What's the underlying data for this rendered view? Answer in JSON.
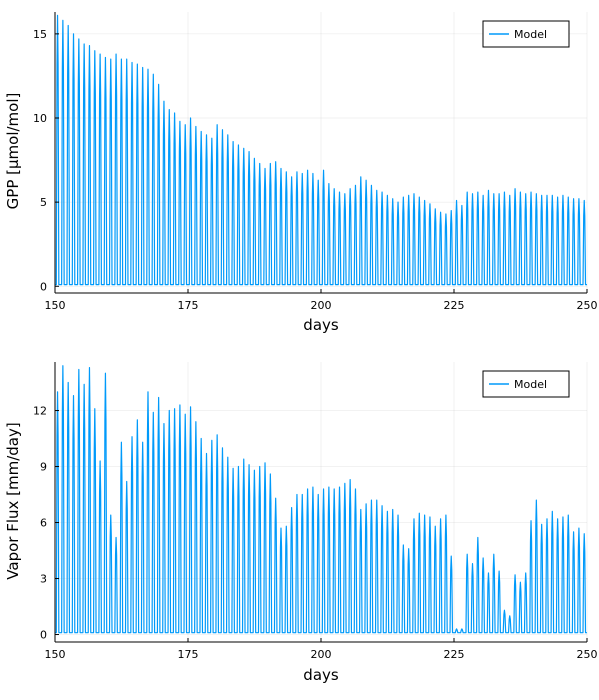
{
  "chart_data": [
    {
      "type": "line",
      "title": "",
      "xlabel": "days",
      "ylabel": "GPP [μmol/mol]",
      "xlim": [
        150,
        250
      ],
      "ylim": [
        -0.4,
        16.3
      ],
      "xticks": [
        150,
        175,
        200,
        225,
        250
      ],
      "yticks": [
        0,
        5,
        10,
        15
      ],
      "grid": true,
      "legend_placement": "top-right",
      "series": [
        {
          "name": "Model",
          "color": "#009AFA",
          "sampling": "sub-daily (diel cycle, values near 0 at night)",
          "daily_peak": {
            "days": [
              150,
              151,
              152,
              153,
              154,
              155,
              156,
              157,
              158,
              159,
              160,
              161,
              162,
              163,
              164,
              165,
              166,
              167,
              168,
              169,
              170,
              171,
              172,
              173,
              174,
              175,
              176,
              177,
              178,
              179,
              180,
              181,
              182,
              183,
              184,
              185,
              186,
              187,
              188,
              189,
              190,
              191,
              192,
              193,
              194,
              195,
              196,
              197,
              198,
              199,
              200,
              201,
              202,
              203,
              204,
              205,
              206,
              207,
              208,
              209,
              210,
              211,
              212,
              213,
              214,
              215,
              216,
              217,
              218,
              219,
              220,
              221,
              222,
              223,
              224,
              225,
              226,
              227,
              228,
              229,
              230,
              231,
              232,
              233,
              234,
              235,
              236,
              237,
              238,
              239,
              240,
              241,
              242,
              243,
              244,
              245,
              246,
              247,
              248,
              249
            ],
            "values": [
              16.1,
              15.8,
              15.5,
              15.0,
              14.7,
              14.4,
              14.3,
              14.0,
              13.8,
              13.6,
              13.5,
              13.8,
              13.5,
              13.5,
              13.3,
              13.2,
              13.0,
              12.9,
              12.6,
              12.0,
              11.0,
              10.5,
              10.3,
              9.8,
              9.6,
              10.0,
              9.5,
              9.2,
              9.0,
              8.8,
              9.6,
              9.3,
              9.0,
              8.6,
              8.4,
              8.2,
              8.0,
              7.6,
              7.3,
              7.0,
              7.3,
              7.4,
              7.0,
              6.8,
              6.5,
              6.8,
              6.7,
              6.9,
              6.7,
              6.3,
              6.9,
              6.1,
              5.8,
              5.6,
              5.5,
              5.8,
              6.0,
              6.5,
              6.3,
              6.0,
              5.7,
              5.6,
              5.4,
              5.2,
              5.0,
              5.3,
              5.4,
              5.5,
              5.3,
              5.1,
              4.9,
              4.6,
              4.4,
              4.3,
              4.5,
              5.1,
              4.8,
              5.6,
              5.5,
              5.6,
              5.4,
              5.7,
              5.5,
              5.5,
              5.6,
              5.4,
              5.8,
              5.6,
              5.5,
              5.6,
              5.5,
              5.4,
              5.4,
              5.4,
              5.3,
              5.4,
              5.3,
              5.2,
              5.2,
              5.1
            ]
          },
          "daily_low": 0.1
        }
      ]
    },
    {
      "type": "line",
      "title": "",
      "xlabel": "days",
      "ylabel": "Vapor Flux [mm/day]",
      "xlim": [
        150,
        250
      ],
      "ylim": [
        -0.4,
        14.6
      ],
      "xticks": [
        150,
        175,
        200,
        225,
        250
      ],
      "yticks": [
        0,
        3,
        6,
        9,
        12
      ],
      "grid": true,
      "legend_placement": "top-right",
      "series": [
        {
          "name": "Model",
          "color": "#009AFA",
          "sampling": "sub-daily (diel cycle, values near 0 at night)",
          "daily_peak": {
            "days": [
              150,
              151,
              152,
              153,
              154,
              155,
              156,
              157,
              158,
              159,
              160,
              161,
              162,
              163,
              164,
              165,
              166,
              167,
              168,
              169,
              170,
              171,
              172,
              173,
              174,
              175,
              176,
              177,
              178,
              179,
              180,
              181,
              182,
              183,
              184,
              185,
              186,
              187,
              188,
              189,
              190,
              191,
              192,
              193,
              194,
              195,
              196,
              197,
              198,
              199,
              200,
              201,
              202,
              203,
              204,
              205,
              206,
              207,
              208,
              209,
              210,
              211,
              212,
              213,
              214,
              215,
              216,
              217,
              218,
              219,
              220,
              221,
              222,
              223,
              224,
              225,
              226,
              227,
              228,
              229,
              230,
              231,
              232,
              233,
              234,
              235,
              236,
              237,
              238,
              239,
              240,
              241,
              242,
              243,
              244,
              245,
              246,
              247,
              248,
              249
            ],
            "values": [
              13.0,
              14.4,
              13.5,
              12.8,
              14.2,
              13.4,
              14.3,
              12.1,
              9.3,
              14.0,
              6.4,
              5.2,
              10.3,
              8.2,
              10.6,
              11.5,
              10.3,
              13.0,
              11.9,
              12.7,
              11.3,
              12.0,
              12.1,
              12.3,
              11.8,
              12.2,
              11.4,
              10.5,
              9.7,
              10.4,
              10.7,
              10.0,
              9.5,
              8.9,
              9.0,
              9.4,
              9.1,
              8.8,
              9.0,
              9.2,
              8.6,
              7.3,
              5.7,
              5.8,
              6.8,
              7.5,
              7.5,
              7.8,
              7.9,
              7.5,
              7.8,
              7.9,
              7.8,
              7.9,
              8.1,
              8.3,
              7.8,
              6.7,
              7.0,
              7.2,
              7.2,
              6.9,
              6.6,
              6.7,
              6.4,
              4.8,
              4.6,
              6.2,
              6.5,
              6.4,
              6.3,
              5.8,
              6.2,
              6.4,
              4.2,
              0.3,
              0.3,
              4.3,
              3.8,
              5.2,
              4.1,
              3.3,
              4.3,
              3.4,
              1.3,
              1.0,
              3.2,
              2.8,
              3.3,
              6.1,
              7.2,
              5.9,
              6.2,
              6.6,
              6.2,
              6.3,
              6.4,
              5.5,
              5.7,
              5.4
            ]
          },
          "daily_low": 0.1
        }
      ]
    }
  ]
}
